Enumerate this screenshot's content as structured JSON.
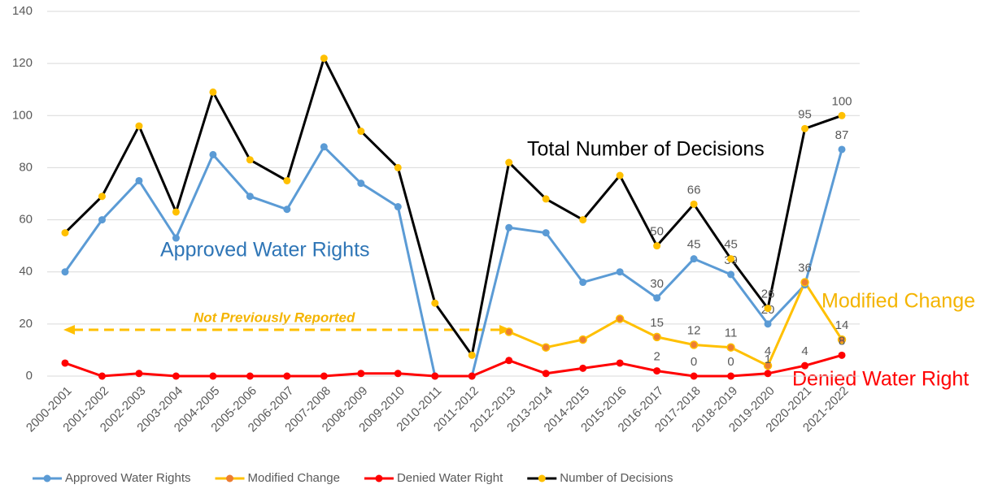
{
  "chart_data": {
    "type": "line",
    "categories": [
      "2000-2001",
      "2001-2002",
      "2002-2003",
      "2003-2004",
      "2004-2005",
      "2005-2006",
      "2006-2007",
      "2007-2008",
      "2008-2009",
      "2009-2010",
      "2010-2011",
      "2011-2012",
      "2012-2013",
      "2013-2014",
      "2014-2015",
      "2015-2016",
      "2016-2017",
      "2017-2018",
      "2018-2019",
      "2019-2020",
      "2020-2021",
      "2021-2022"
    ],
    "ylim": [
      0,
      140
    ],
    "yticks": [
      0,
      20,
      40,
      60,
      80,
      100,
      120,
      140
    ],
    "grid": true,
    "legend": "bottom",
    "series": [
      {
        "name": "Approved Water Rights",
        "color": "#5b9bd5",
        "marker_color": "#5b9bd5",
        "values": [
          40,
          60,
          75,
          53,
          85,
          69,
          64,
          88,
          74,
          65,
          0,
          0,
          57,
          55,
          36,
          40,
          30,
          45,
          39,
          20,
          35,
          87
        ],
        "value_labels": [
          null,
          null,
          null,
          null,
          null,
          null,
          null,
          null,
          null,
          null,
          null,
          null,
          null,
          null,
          null,
          null,
          "30",
          "45",
          "39",
          "20",
          null,
          "87"
        ]
      },
      {
        "name": "Modified Change",
        "color": "#ffc000",
        "marker_color": "#ed7d31",
        "values": [
          null,
          null,
          null,
          null,
          null,
          null,
          null,
          null,
          null,
          null,
          null,
          null,
          17,
          11,
          14,
          22,
          15,
          12,
          11,
          4,
          36,
          14
        ],
        "value_labels": [
          null,
          null,
          null,
          null,
          null,
          null,
          null,
          null,
          null,
          null,
          null,
          null,
          null,
          null,
          null,
          null,
          "15",
          "12",
          "11",
          "4",
          "36",
          "14"
        ]
      },
      {
        "name": "Denied Water Right",
        "color": "#ff0000",
        "marker_color": "#ff0000",
        "values": [
          5,
          0,
          1,
          0,
          0,
          0,
          0,
          0,
          1,
          1,
          0,
          0,
          6,
          1,
          3,
          5,
          2,
          0,
          0,
          1,
          4,
          8
        ],
        "value_labels": [
          null,
          null,
          null,
          null,
          null,
          null,
          null,
          null,
          null,
          null,
          null,
          null,
          null,
          null,
          null,
          null,
          "2",
          "0",
          "0",
          "1",
          "4",
          "8"
        ]
      },
      {
        "name": "Number of Decisions",
        "color": "#000000",
        "marker_color": "#ffc000",
        "values": [
          55,
          69,
          96,
          63,
          109,
          83,
          75,
          122,
          94,
          80,
          28,
          8,
          82,
          68,
          60,
          77,
          50,
          66,
          45,
          26,
          95,
          100
        ],
        "value_labels": [
          null,
          null,
          null,
          null,
          null,
          null,
          null,
          null,
          null,
          null,
          null,
          null,
          null,
          null,
          null,
          null,
          "50",
          "66",
          "45",
          "26",
          "95",
          "100"
        ]
      }
    ],
    "annotations": [
      {
        "text": "Total Number of Decisions",
        "color": "#000000"
      },
      {
        "text": "Approved Water Rights",
        "color": "#2e75b6"
      },
      {
        "text": "Modified Change",
        "color": "#f4b400"
      },
      {
        "text": "Denied Water Right",
        "color": "#ff0000"
      },
      {
        "text": "Not Previously Reported",
        "color": "#f4b400"
      }
    ]
  }
}
